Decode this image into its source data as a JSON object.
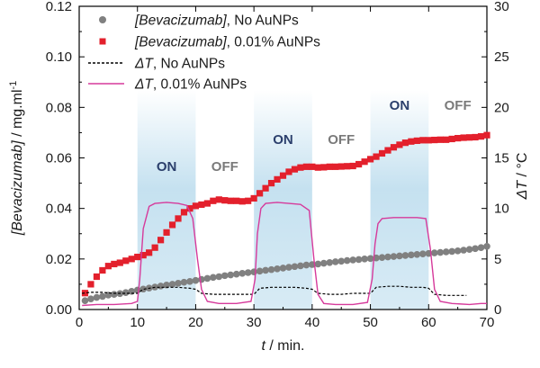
{
  "chart_data": {
    "type": "scatter",
    "x_axis": {
      "label_italic": "t",
      "label_rest": " / min.",
      "range": [
        0,
        70
      ],
      "ticks": [
        0,
        10,
        20,
        30,
        40,
        50,
        60,
        70
      ],
      "tick_labels": [
        "0",
        "10",
        "20",
        "30",
        "40",
        "50",
        "60",
        "70"
      ]
    },
    "y_left": {
      "label_italic": "[Bevacizumab]",
      "label_rest": " / mg.ml",
      "label_sup": "-1",
      "range": [
        0,
        0.12
      ],
      "ticks": [
        0,
        0.02,
        0.04,
        0.06,
        0.08,
        0.1,
        0.12
      ],
      "tick_labels": [
        "0.00",
        "0.02",
        "0.04",
        "0.06",
        "0.08",
        "0.10",
        "0.12"
      ]
    },
    "y_right": {
      "label_italic": "ΔT",
      "label_rest": " / °C",
      "range": [
        0,
        30
      ],
      "ticks": [
        0,
        5,
        10,
        15,
        20,
        25,
        30
      ],
      "tick_labels": [
        "0",
        "5",
        "10",
        "15",
        "20",
        "25",
        "30"
      ]
    },
    "phases": [
      {
        "label": "ON",
        "x": [
          10,
          20
        ],
        "state": "on"
      },
      {
        "label": "OFF",
        "x": [
          20,
          30
        ],
        "state": "off"
      },
      {
        "label": "ON",
        "x": [
          30,
          40
        ],
        "state": "on"
      },
      {
        "label": "OFF",
        "x": [
          40,
          50
        ],
        "state": "off"
      },
      {
        "label": "ON",
        "x": [
          50,
          60
        ],
        "state": "on"
      },
      {
        "label": "OFF",
        "x": [
          60,
          70
        ],
        "state": "off"
      }
    ],
    "series": [
      {
        "name_italic": "[Bevacizumab]",
        "name_rest": ", No AuNPs",
        "kind": "scatter-circle",
        "axis": "left",
        "color": "#808080",
        "x": [
          1,
          2,
          3,
          4,
          5,
          6,
          7,
          8,
          9,
          10,
          11,
          12,
          13,
          14,
          15,
          16,
          17,
          18,
          19,
          20,
          21,
          22,
          23,
          24,
          25,
          26,
          27,
          28,
          29,
          30,
          31,
          32,
          33,
          34,
          35,
          36,
          37,
          38,
          39,
          40,
          41,
          42,
          43,
          44,
          45,
          46,
          47,
          48,
          49,
          50,
          51,
          52,
          53,
          54,
          55,
          56,
          57,
          58,
          59,
          60,
          61,
          62,
          63,
          64,
          65,
          66,
          67,
          68,
          69,
          70
        ],
        "y": [
          0.0035,
          0.0042,
          0.0048,
          0.0052,
          0.0057,
          0.006,
          0.0063,
          0.0067,
          0.0072,
          0.0077,
          0.0081,
          0.0085,
          0.0089,
          0.0093,
          0.0097,
          0.01,
          0.0104,
          0.0108,
          0.0111,
          0.0115,
          0.0119,
          0.0123,
          0.0127,
          0.013,
          0.0134,
          0.0137,
          0.014,
          0.0143,
          0.0146,
          0.0149,
          0.0152,
          0.0155,
          0.0158,
          0.0161,
          0.0164,
          0.0167,
          0.017,
          0.0173,
          0.0176,
          0.0178,
          0.018,
          0.0183,
          0.0186,
          0.0189,
          0.0191,
          0.0194,
          0.0196,
          0.0198,
          0.02,
          0.0202,
          0.0204,
          0.0206,
          0.0208,
          0.021,
          0.0212,
          0.0214,
          0.0216,
          0.0218,
          0.022,
          0.0222,
          0.0224,
          0.0226,
          0.0228,
          0.023,
          0.0232,
          0.0235,
          0.0238,
          0.0241,
          0.0245,
          0.025
        ]
      },
      {
        "name_italic": "[Bevacizumab]",
        "name_rest": ", 0.01% AuNPs",
        "kind": "scatter-square",
        "axis": "left",
        "color": "#e3202c",
        "x": [
          1,
          2,
          3,
          4,
          5,
          6,
          7,
          8,
          9,
          10,
          11,
          12,
          13,
          14,
          15,
          16,
          17,
          18,
          19,
          20,
          21,
          22,
          23,
          24,
          25,
          26,
          27,
          28,
          29,
          30,
          31,
          32,
          33,
          34,
          35,
          36,
          37,
          38,
          39,
          40,
          41,
          42,
          43,
          44,
          45,
          46,
          47,
          48,
          49,
          50,
          51,
          52,
          53,
          54,
          55,
          56,
          57,
          58,
          59,
          60,
          61,
          62,
          63,
          64,
          65,
          66,
          67,
          68,
          69,
          70
        ],
        "y": [
          0.0065,
          0.01,
          0.013,
          0.0155,
          0.0172,
          0.018,
          0.0185,
          0.0193,
          0.02,
          0.0208,
          0.0215,
          0.0225,
          0.0245,
          0.0275,
          0.0305,
          0.0335,
          0.036,
          0.0385,
          0.04,
          0.041,
          0.0415,
          0.042,
          0.043,
          0.0435,
          0.0432,
          0.043,
          0.043,
          0.0428,
          0.043,
          0.044,
          0.046,
          0.048,
          0.05,
          0.0515,
          0.053,
          0.0545,
          0.0555,
          0.0562,
          0.0565,
          0.0565,
          0.0562,
          0.0563,
          0.0565,
          0.0565,
          0.0566,
          0.0567,
          0.0568,
          0.0575,
          0.0585,
          0.0595,
          0.0605,
          0.0618,
          0.063,
          0.0642,
          0.0652,
          0.066,
          0.0665,
          0.0668,
          0.067,
          0.067,
          0.0671,
          0.0672,
          0.0672,
          0.0675,
          0.0678,
          0.068,
          0.0681,
          0.0682,
          0.0685,
          0.069
        ]
      },
      {
        "name_italic": "ΔT",
        "name_rest": ", No AuNPs",
        "kind": "line-dashed",
        "axis": "right",
        "color": "#000000",
        "x": [
          0.5,
          2,
          4,
          6,
          8,
          10,
          10.5,
          11,
          13,
          15,
          17,
          19,
          20,
          20.5,
          21,
          23,
          25,
          27,
          29,
          30,
          30.5,
          31,
          33,
          35,
          37,
          39,
          40,
          40.5,
          41,
          43,
          45,
          47,
          49,
          50,
          50.5,
          51,
          53,
          55,
          57,
          59,
          60,
          60.5,
          61,
          63,
          65,
          66.5
        ],
        "y": [
          1.6,
          1.7,
          1.7,
          1.6,
          1.6,
          1.6,
          1.8,
          2.0,
          2.2,
          2.2,
          2.2,
          2.1,
          2.0,
          1.8,
          1.6,
          1.5,
          1.5,
          1.5,
          1.5,
          1.5,
          1.8,
          2.1,
          2.2,
          2.2,
          2.2,
          2.1,
          2.0,
          1.8,
          1.6,
          1.5,
          1.5,
          1.6,
          1.6,
          1.6,
          1.9,
          2.2,
          2.3,
          2.3,
          2.2,
          2.2,
          2.1,
          1.8,
          1.5,
          1.4,
          1.4,
          1.4
        ]
      },
      {
        "name_italic": "ΔT",
        "name_rest": ", 0.01% AuNPs",
        "kind": "line-solid",
        "axis": "right",
        "color": "#d63a9b",
        "x": [
          0.5,
          3,
          6,
          9,
          10,
          10.4,
          11,
          12,
          13,
          15,
          17,
          18.5,
          19.5,
          20.3,
          21,
          22,
          24,
          27,
          29.5,
          30.2,
          30.6,
          31.2,
          32,
          34,
          36,
          38,
          39.5,
          40.3,
          41,
          42,
          44,
          47,
          49.5,
          50.3,
          50.8,
          51.3,
          52,
          54,
          56,
          58,
          59.5,
          60.3,
          61,
          62,
          64,
          67,
          69,
          70
        ],
        "y": [
          0.4,
          0.5,
          0.5,
          0.6,
          0.8,
          3.0,
          8.0,
          10.2,
          10.5,
          10.6,
          10.5,
          10.3,
          9.0,
          5.0,
          2.0,
          0.8,
          0.6,
          0.6,
          0.8,
          3.0,
          7.5,
          10.0,
          10.5,
          10.6,
          10.5,
          10.4,
          9.8,
          5.0,
          1.5,
          0.6,
          0.5,
          0.5,
          0.7,
          3.0,
          6.5,
          8.5,
          9.0,
          9.1,
          9.1,
          9.1,
          9.0,
          6.0,
          2.0,
          0.8,
          0.6,
          0.5,
          0.6,
          0.6
        ]
      }
    ]
  }
}
